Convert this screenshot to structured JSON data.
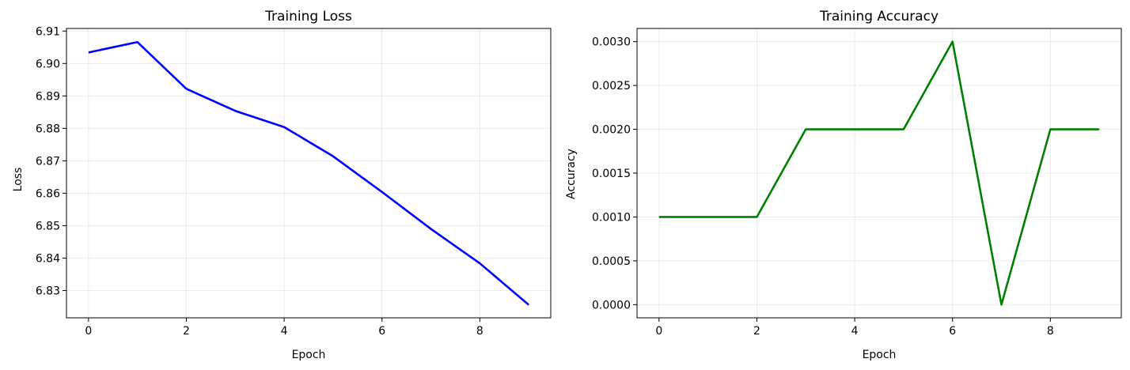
{
  "chart_data": [
    {
      "type": "line",
      "title": "Training Loss",
      "xlabel": "Epoch",
      "ylabel": "Loss",
      "xlim": [
        -0.45,
        9.45
      ],
      "ylim": [
        6.8216,
        6.9108
      ],
      "xticks": [
        0,
        2,
        4,
        6,
        8
      ],
      "xtick_labels": [
        "0",
        "2",
        "4",
        "6",
        "8"
      ],
      "yticks": [
        6.83,
        6.84,
        6.85,
        6.86,
        6.87,
        6.88,
        6.89,
        6.9,
        6.91
      ],
      "ytick_labels": [
        "6.83",
        "6.84",
        "6.85",
        "6.86",
        "6.87",
        "6.88",
        "6.89",
        "6.90",
        "6.91"
      ],
      "grid": true,
      "series": [
        {
          "color": "#0000ff",
          "x": [
            0,
            1,
            2,
            3,
            4,
            5,
            6,
            7,
            8,
            9
          ],
          "values": [
            6.9034,
            6.9066,
            6.8922,
            6.8854,
            6.8804,
            6.8714,
            6.8604,
            6.849,
            6.8384,
            6.8256
          ]
        }
      ]
    },
    {
      "type": "line",
      "title": "Training Accuracy",
      "xlabel": "Epoch",
      "ylabel": "Accuracy",
      "xlim": [
        -0.45,
        9.45
      ],
      "ylim": [
        -0.00015,
        0.00315
      ],
      "xticks": [
        0,
        2,
        4,
        6,
        8
      ],
      "xtick_labels": [
        "0",
        "2",
        "4",
        "6",
        "8"
      ],
      "yticks": [
        0.0,
        0.0005,
        0.001,
        0.0015,
        0.002,
        0.0025,
        0.003
      ],
      "ytick_labels": [
        "0.0000",
        "0.0005",
        "0.0010",
        "0.0015",
        "0.0020",
        "0.0025",
        "0.0030"
      ],
      "grid": true,
      "series": [
        {
          "color": "#008000",
          "x": [
            0,
            1,
            2,
            3,
            4,
            5,
            6,
            7,
            8,
            9
          ],
          "values": [
            0.001,
            0.001,
            0.001,
            0.002,
            0.002,
            0.002,
            0.003,
            0.0,
            0.002,
            0.002
          ]
        }
      ]
    }
  ]
}
